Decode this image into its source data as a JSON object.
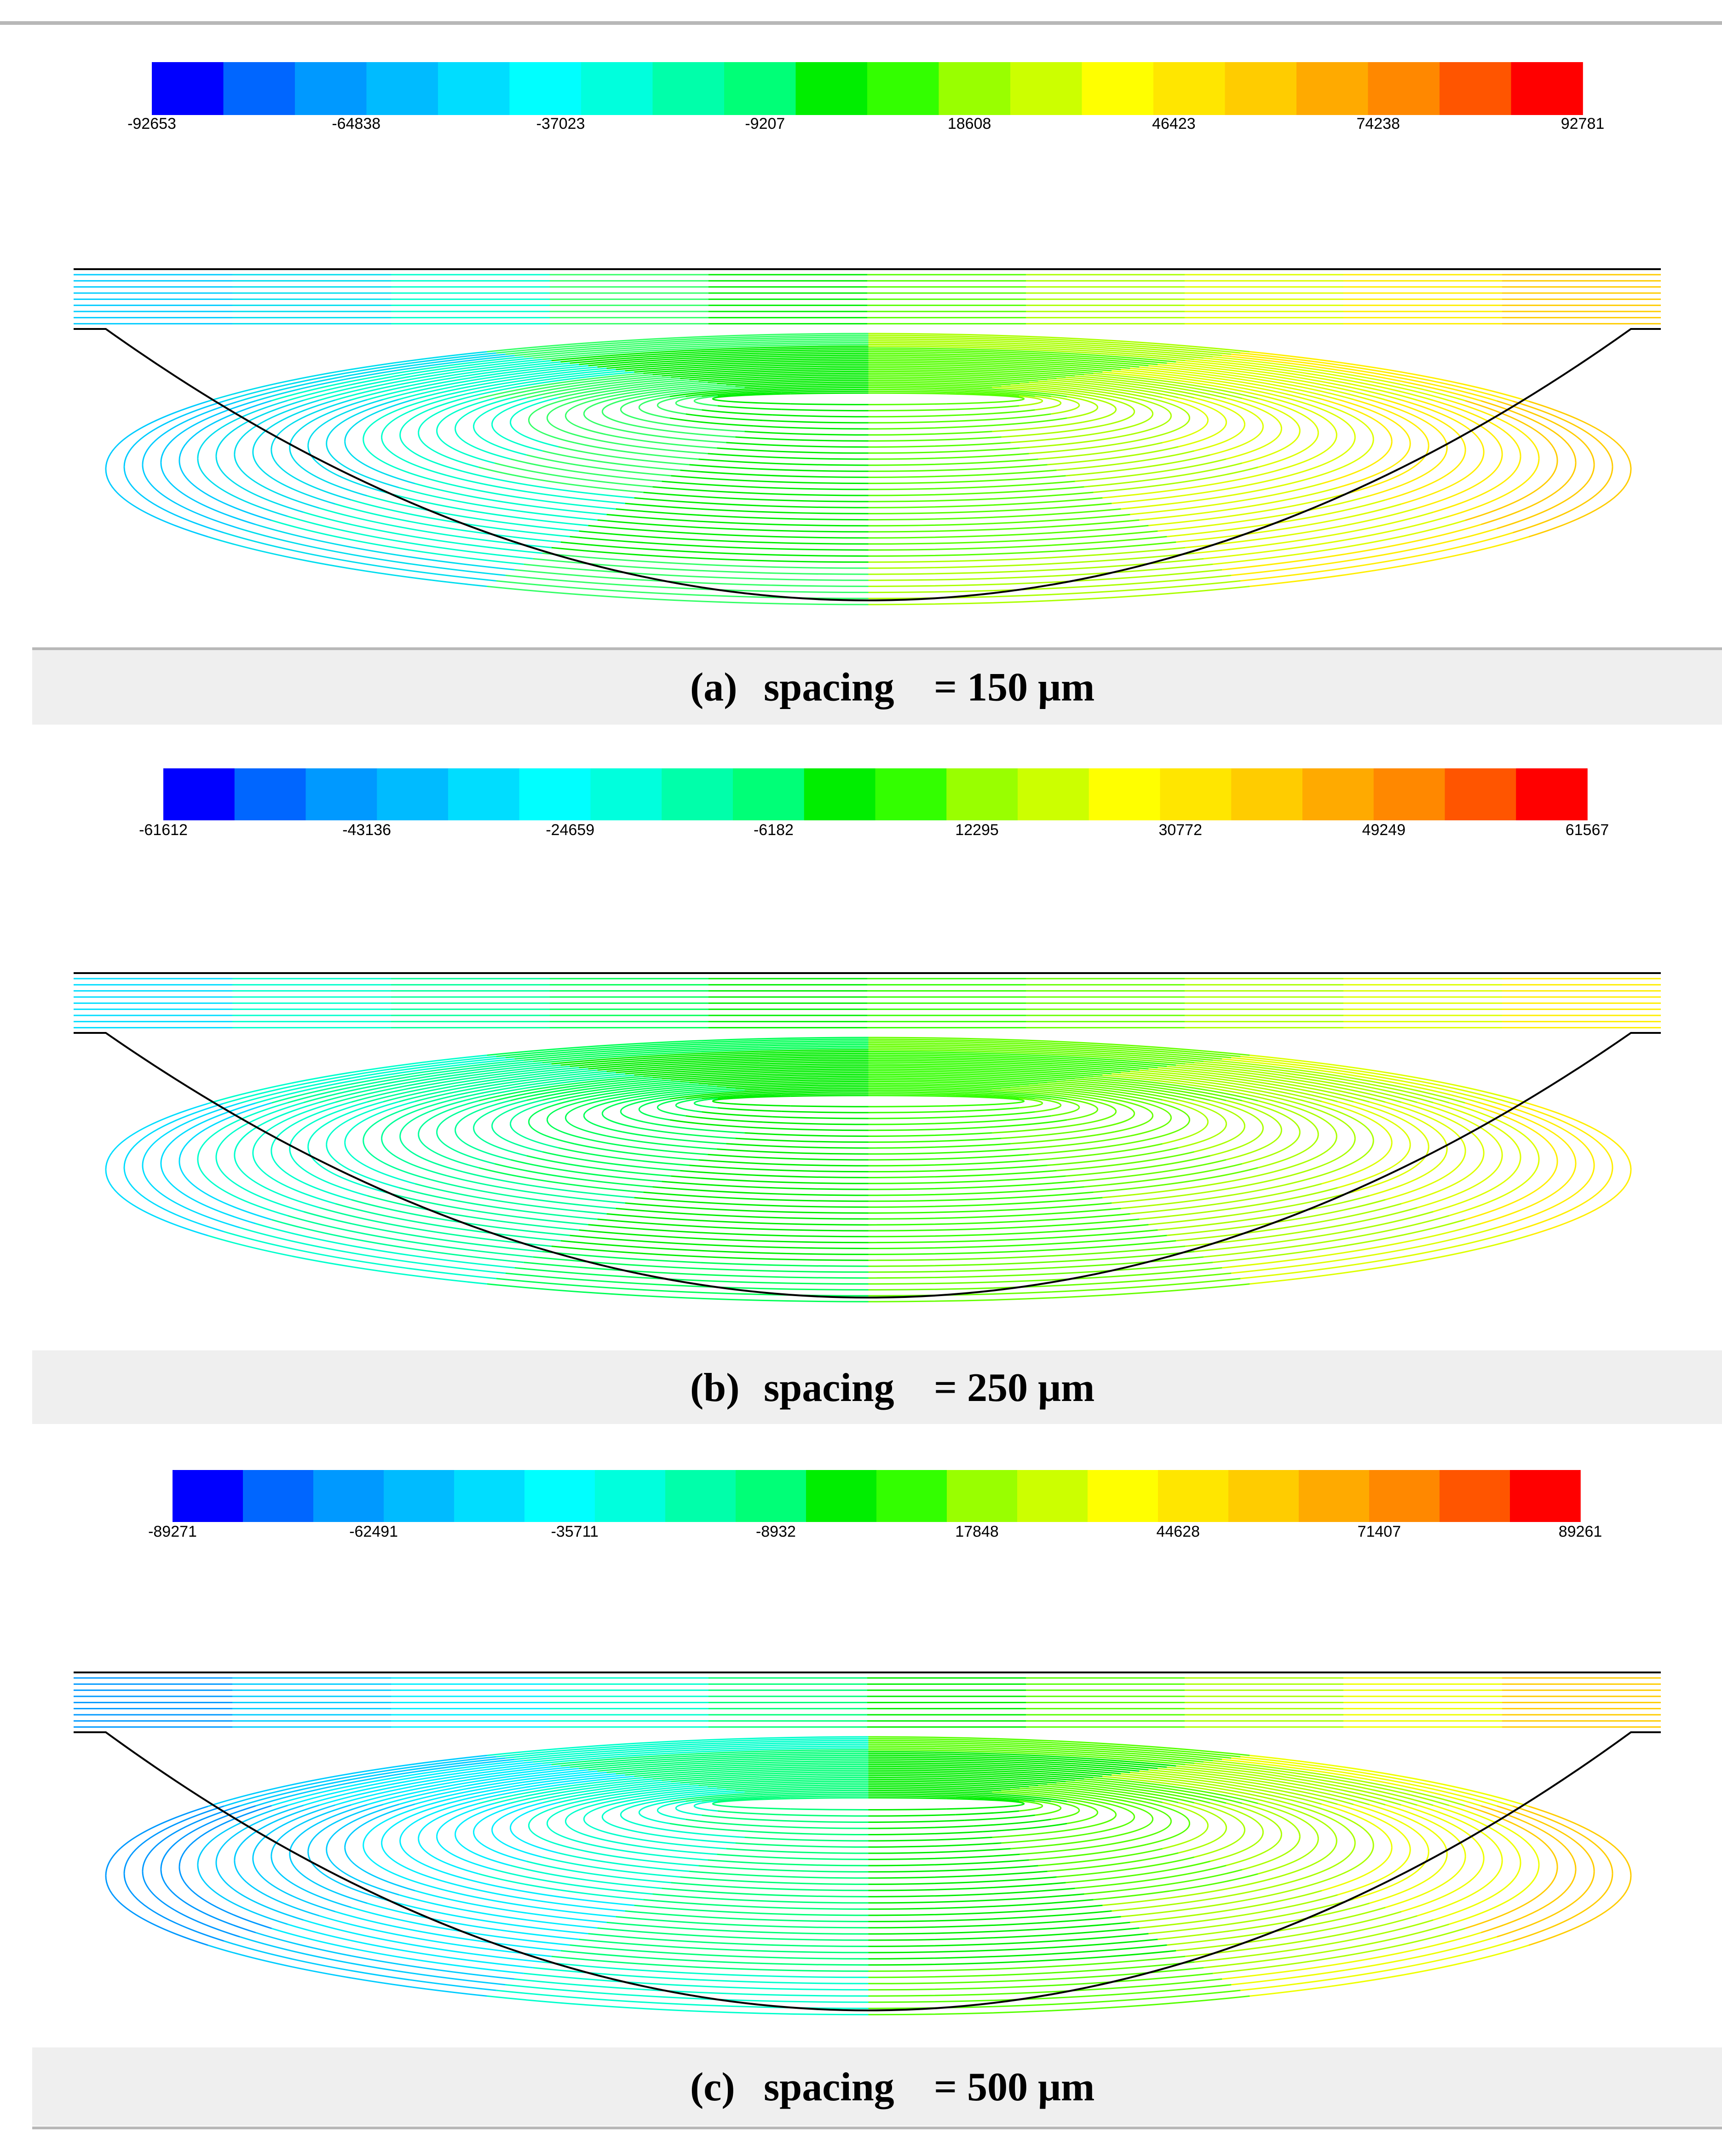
{
  "colorbar_colors": [
    "#0000ff",
    "#0066ff",
    "#0099ff",
    "#00bbff",
    "#00ddff",
    "#00ffff",
    "#00ffdd",
    "#00ffaa",
    "#00ff77",
    "#00ee00",
    "#33ff00",
    "#99ff00",
    "#ccff00",
    "#ffff00",
    "#ffe600",
    "#ffcc00",
    "#ffaa00",
    "#ff8800",
    "#ff5500",
    "#ff0000"
  ],
  "outline_color": "#000000",
  "panels": [
    {
      "id": "a",
      "caption_label": "(a)",
      "caption_word": "spacing",
      "caption_value": "= 150 μm",
      "colorbar_ticks": [
        "-92653",
        "-64838",
        "-37023",
        "-9207",
        "18608",
        "46423",
        "74238",
        "92781"
      ],
      "stream_colors": [
        "#00ccff",
        "#00ddee",
        "#00ffcc",
        "#33ff66",
        "#00ee00",
        "#55ff00",
        "#aaff00",
        "#ddff00",
        "#ffee00",
        "#ffcc00"
      ]
    },
    {
      "id": "b",
      "caption_label": "(b)",
      "caption_word": "spacing",
      "caption_value": "= 250 μm",
      "colorbar_ticks": [
        "-61612",
        "-43136",
        "-24659",
        "-6182",
        "12295",
        "30772",
        "49249",
        "61567"
      ],
      "stream_colors": [
        "#00ddff",
        "#00ffcc",
        "#00ff99",
        "#00ff55",
        "#00ee00",
        "#33ff00",
        "#66ff00",
        "#aaff00",
        "#ddff00",
        "#ffee00"
      ]
    },
    {
      "id": "c",
      "caption_label": "(c)",
      "caption_word": "spacing",
      "caption_value": "= 500 μm",
      "colorbar_ticks": [
        "-89271",
        "-62491",
        "-35711",
        "-8932",
        "17848",
        "44628",
        "71407",
        "89261"
      ],
      "stream_colors": [
        "#0099ff",
        "#00ccff",
        "#00eeff",
        "#00ffcc",
        "#00ff77",
        "#00ee00",
        "#55ff00",
        "#aaff00",
        "#eeff00",
        "#ffcc00"
      ]
    }
  ]
}
